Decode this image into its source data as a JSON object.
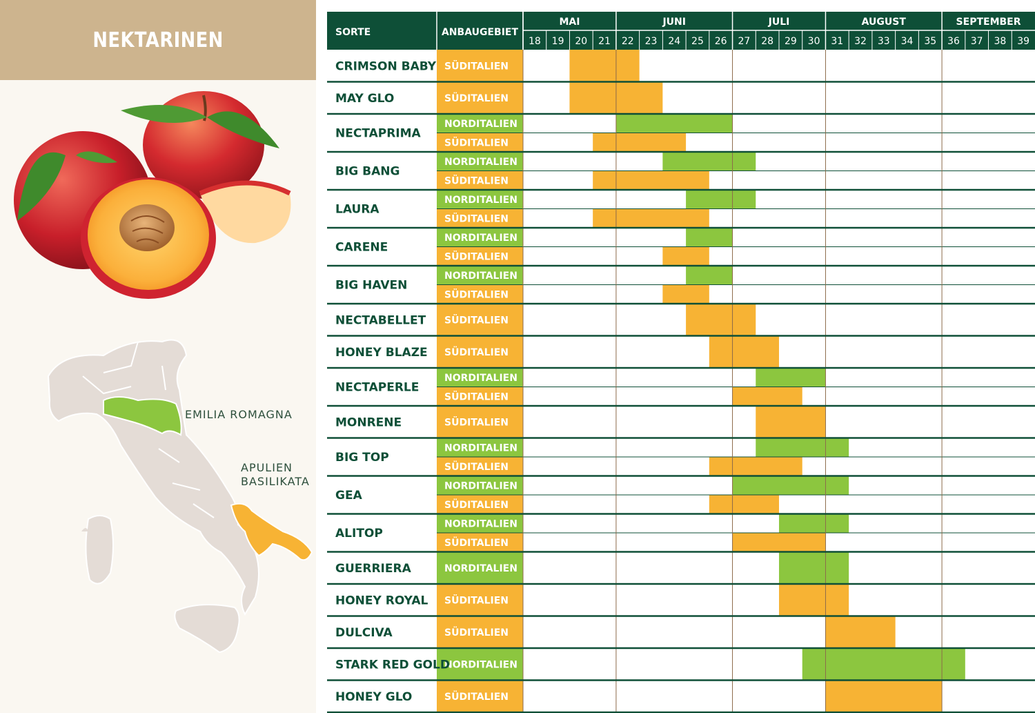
{
  "title": "NEKTARINEN",
  "map": {
    "regions": [
      {
        "name": "EMILIA ROMAGNA",
        "color": "#8cc63f"
      },
      {
        "name": "APULIEN",
        "color": "#f7b334"
      },
      {
        "name": "BASILIKATA",
        "color": "#f7b334"
      }
    ]
  },
  "colors": {
    "header": "#0e4f37",
    "nord": "#8cc63f",
    "sued": "#f7b334",
    "title_box": "#cdb48e"
  },
  "chart_data": {
    "type": "table",
    "columns": {
      "variety": "SORTE",
      "region": "ANBAUGEBIET"
    },
    "regions": {
      "nord": "NORDITALIEN",
      "sued": "SÜDITALIEN"
    },
    "months": [
      {
        "name": "MAI",
        "weeks": [
          18,
          19,
          20,
          21
        ]
      },
      {
        "name": "JUNI",
        "weeks": [
          22,
          23,
          24,
          25,
          26
        ]
      },
      {
        "name": "JULI",
        "weeks": [
          27,
          28,
          29,
          30
        ]
      },
      {
        "name": "AUGUST",
        "weeks": [
          31,
          32,
          33,
          34,
          35
        ]
      },
      {
        "name": "SEPTEMBER",
        "weeks": [
          36,
          37,
          38,
          39
        ]
      }
    ],
    "varieties": [
      {
        "name": "CRIMSON BABY",
        "rows": [
          {
            "region": "sued",
            "start": 20,
            "end": 22
          }
        ]
      },
      {
        "name": "MAY GLO",
        "rows": [
          {
            "region": "sued",
            "start": 20,
            "end": 23
          }
        ]
      },
      {
        "name": "NECTAPRIMA",
        "rows": [
          {
            "region": "nord",
            "start": 22,
            "end": 26
          },
          {
            "region": "sued",
            "start": 21,
            "end": 24
          }
        ]
      },
      {
        "name": "BIG BANG",
        "rows": [
          {
            "region": "nord",
            "start": 24,
            "end": 27
          },
          {
            "region": "sued",
            "start": 21,
            "end": 25
          }
        ]
      },
      {
        "name": "LAURA",
        "rows": [
          {
            "region": "nord",
            "start": 25,
            "end": 27
          },
          {
            "region": "sued",
            "start": 21,
            "end": 25
          }
        ]
      },
      {
        "name": "CARENE",
        "rows": [
          {
            "region": "nord",
            "start": 25,
            "end": 26
          },
          {
            "region": "sued",
            "start": 24,
            "end": 25
          }
        ]
      },
      {
        "name": "BIG HAVEN",
        "rows": [
          {
            "region": "nord",
            "start": 25,
            "end": 26
          },
          {
            "region": "sued",
            "start": 24,
            "end": 25
          }
        ]
      },
      {
        "name": "NECTABELLET",
        "rows": [
          {
            "region": "sued",
            "start": 25,
            "end": 27
          }
        ]
      },
      {
        "name": "HONEY BLAZE",
        "rows": [
          {
            "region": "sued",
            "start": 26,
            "end": 28
          }
        ]
      },
      {
        "name": "NECTAPERLE",
        "rows": [
          {
            "region": "nord",
            "start": 28,
            "end": 30
          },
          {
            "region": "sued",
            "start": 27,
            "end": 29
          }
        ]
      },
      {
        "name": "MONRENE",
        "rows": [
          {
            "region": "sued",
            "start": 28,
            "end": 30
          }
        ]
      },
      {
        "name": "BIG TOP",
        "rows": [
          {
            "region": "nord",
            "start": 28,
            "end": 31
          },
          {
            "region": "sued",
            "start": 26,
            "end": 29
          }
        ]
      },
      {
        "name": "GEA",
        "rows": [
          {
            "region": "nord",
            "start": 27,
            "end": 31
          },
          {
            "region": "sued",
            "start": 26,
            "end": 28
          }
        ]
      },
      {
        "name": "ALITOP",
        "rows": [
          {
            "region": "nord",
            "start": 29,
            "end": 31
          },
          {
            "region": "sued",
            "start": 27,
            "end": 30
          }
        ]
      },
      {
        "name": "GUERRIERA",
        "rows": [
          {
            "region": "nord",
            "start": 29,
            "end": 31
          }
        ]
      },
      {
        "name": "HONEY ROYAL",
        "rows": [
          {
            "region": "sued",
            "start": 29,
            "end": 31
          }
        ]
      },
      {
        "name": "DULCIVA",
        "rows": [
          {
            "region": "sued",
            "start": 31,
            "end": 33
          }
        ]
      },
      {
        "name": "STARK RED GOLD",
        "rows": [
          {
            "region": "nord",
            "start": 30,
            "end": 36
          }
        ]
      },
      {
        "name": "HONEY GLO",
        "rows": [
          {
            "region": "sued",
            "start": 31,
            "end": 35
          }
        ]
      }
    ]
  }
}
